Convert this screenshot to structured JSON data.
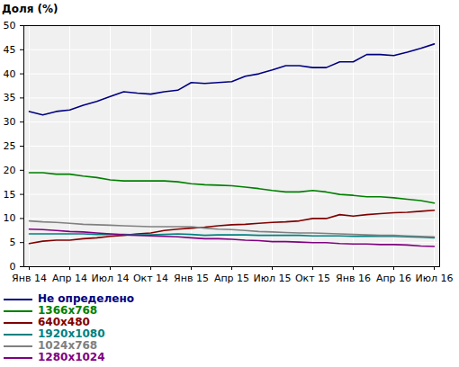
{
  "chart_data": {
    "type": "line",
    "title": "Доля (%)",
    "categories": [
      "Янв 14",
      null,
      null,
      "Апр 14",
      null,
      null,
      "Июл 14",
      null,
      null,
      "Окт 14",
      null,
      null,
      "Янв 15",
      null,
      null,
      "Апр 15",
      null,
      null,
      "Июл 15",
      null,
      null,
      "Окт 15",
      null,
      null,
      "Янв 16",
      null,
      null,
      "Апр 16",
      null,
      null,
      "Июл 16"
    ],
    "series": [
      {
        "name": "Не определено",
        "color": "#000080",
        "values": [
          32.2,
          31.5,
          32.2,
          32.5,
          33.5,
          34.3,
          35.3,
          36.3,
          36.0,
          35.8,
          36.3,
          36.6,
          38.2,
          38.0,
          38.2,
          38.4,
          39.5,
          40.0,
          40.8,
          41.7,
          41.7,
          41.3,
          41.3,
          42.5,
          42.5,
          44.0,
          44.0,
          43.8,
          44.5,
          45.3,
          46.2
        ]
      },
      {
        "name": "1366x768",
        "color": "#008000",
        "values": [
          19.5,
          19.5,
          19.2,
          19.2,
          18.8,
          18.5,
          18.0,
          17.8,
          17.8,
          17.8,
          17.8,
          17.6,
          17.2,
          17.0,
          16.9,
          16.8,
          16.5,
          16.2,
          15.8,
          15.5,
          15.5,
          15.8,
          15.5,
          15.0,
          14.8,
          14.5,
          14.5,
          14.3,
          14.0,
          13.7,
          13.2
        ]
      },
      {
        "name": "640x480",
        "color": "#800000",
        "values": [
          4.8,
          5.3,
          5.5,
          5.5,
          5.8,
          6.0,
          6.3,
          6.5,
          6.8,
          7.0,
          7.5,
          7.8,
          8.0,
          8.2,
          8.5,
          8.7,
          8.8,
          9.0,
          9.2,
          9.3,
          9.5,
          10.0,
          10.0,
          10.8,
          10.5,
          10.8,
          11.0,
          11.2,
          11.3,
          11.5,
          11.7
        ]
      },
      {
        "name": "1920x1080",
        "color": "#008080",
        "values": [
          6.8,
          6.8,
          6.8,
          6.8,
          6.8,
          6.7,
          6.7,
          6.7,
          6.6,
          6.6,
          6.7,
          6.8,
          6.7,
          6.5,
          6.6,
          6.6,
          6.6,
          6.5,
          6.5,
          6.5,
          6.5,
          6.4,
          6.4,
          6.4,
          6.3,
          6.3,
          6.3,
          6.3,
          6.2,
          6.1,
          6.0
        ]
      },
      {
        "name": "1024x768",
        "color": "#808080",
        "values": [
          9.5,
          9.3,
          9.2,
          9.0,
          8.8,
          8.7,
          8.6,
          8.5,
          8.4,
          8.3,
          8.3,
          8.3,
          8.3,
          8.0,
          7.8,
          7.7,
          7.5,
          7.3,
          7.2,
          7.1,
          7.0,
          7.0,
          6.9,
          6.8,
          6.7,
          6.6,
          6.5,
          6.5,
          6.4,
          6.3,
          6.2
        ]
      },
      {
        "name": "1280x1024",
        "color": "#800080",
        "values": [
          7.8,
          7.7,
          7.5,
          7.3,
          7.2,
          7.0,
          6.8,
          6.6,
          6.5,
          6.4,
          6.3,
          6.2,
          6.0,
          5.8,
          5.8,
          5.7,
          5.5,
          5.4,
          5.2,
          5.2,
          5.1,
          5.0,
          5.0,
          4.8,
          4.7,
          4.7,
          4.6,
          4.6,
          4.5,
          4.3,
          4.2
        ]
      }
    ],
    "ylim": [
      0,
      50
    ],
    "yticks": [
      0,
      5,
      10,
      15,
      20,
      25,
      30,
      35,
      40,
      45,
      50
    ],
    "grid": true,
    "legend": "bottom"
  }
}
